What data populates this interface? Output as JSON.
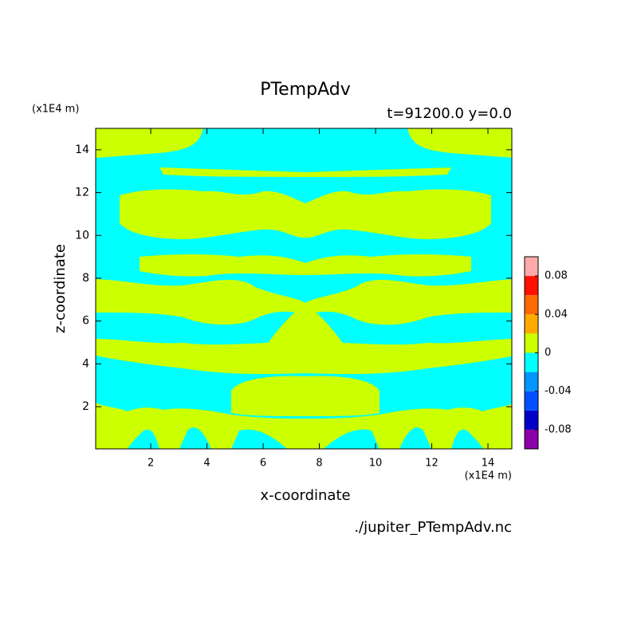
{
  "chart_data": {
    "type": "contour",
    "title": "PTempAdv",
    "subtitle": "t=91200.0 y=0.0",
    "x_label": "x-coordinate",
    "y_label": "z-coordinate",
    "x_unit": "(x1E4 m)",
    "y_unit": "(x1E4 m)",
    "source": "./jupiter_PTempAdv.nc",
    "xlim": [
      0.04,
      14.85
    ],
    "ylim": [
      0.03,
      15
    ],
    "xticks": [
      2,
      4,
      6,
      8,
      10,
      12,
      14
    ],
    "yticks": [
      2,
      4,
      6,
      8,
      10,
      12,
      14
    ],
    "colorbar": {
      "levels": [
        -0.1,
        -0.08,
        -0.06,
        -0.04,
        -0.02,
        0,
        0.02,
        0.04,
        0.06,
        0.08,
        0.1
      ],
      "colors": [
        "#8a00a8",
        "#0000c8",
        "#0050ff",
        "#0096ff",
        "#00ffff",
        "#ccff00",
        "#ffaa00",
        "#ff6a00",
        "#ff1000",
        "#ffaaaa"
      ],
      "ticks": [
        -0.08,
        -0.04,
        0,
        0.04,
        0.08
      ]
    }
  }
}
